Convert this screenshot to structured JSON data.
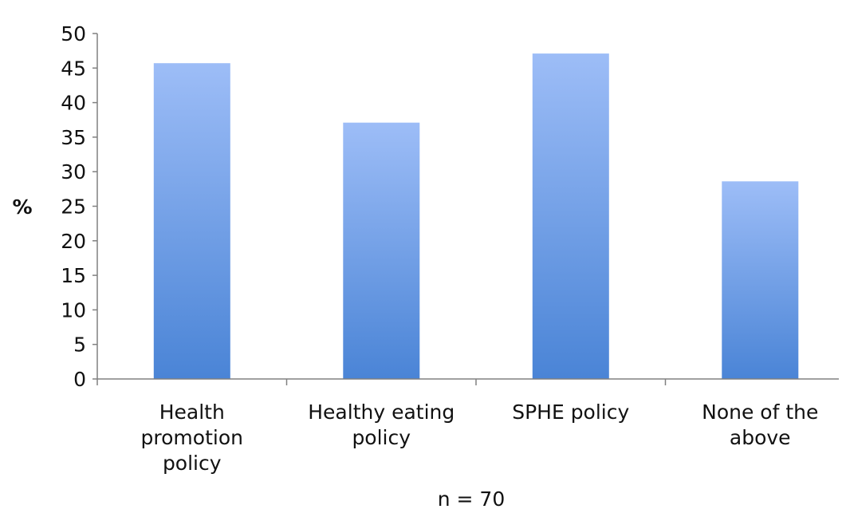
{
  "chart_data": {
    "type": "bar",
    "categories": [
      [
        "Health",
        "promotion",
        "policy"
      ],
      [
        "Healthy eating",
        "policy"
      ],
      [
        "SPHE policy"
      ],
      [
        "None of the",
        "above"
      ]
    ],
    "values": [
      45.7,
      37.1,
      47.1,
      28.6
    ],
    "ylabel": "%",
    "ylim": [
      0,
      50
    ],
    "yticks": [
      0,
      5,
      10,
      15,
      20,
      25,
      30,
      35,
      40,
      45,
      50
    ],
    "note": "n = 70",
    "grid": false,
    "bar_color_top": "#9dbdf7",
    "bar_color_bottom": "#4a84d6"
  }
}
